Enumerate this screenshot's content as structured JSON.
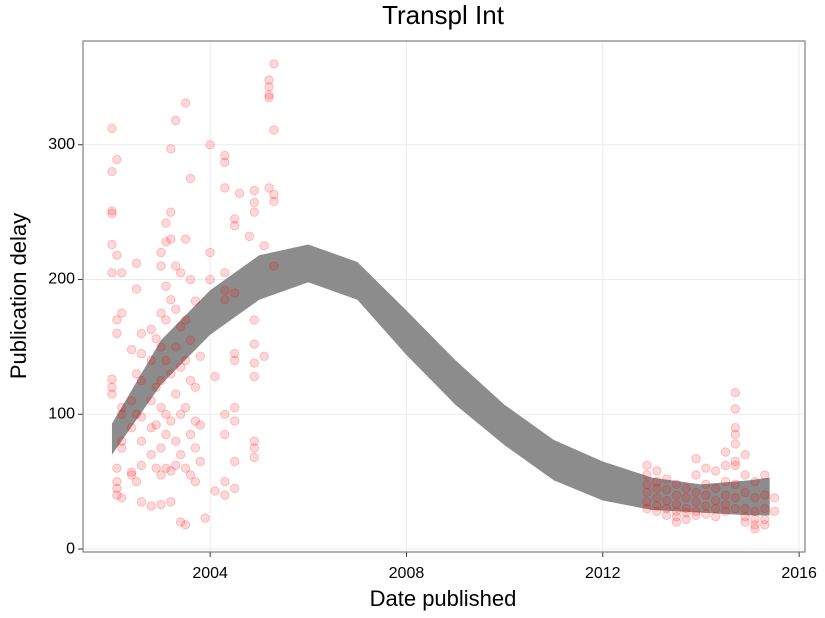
{
  "chart_data": {
    "type": "scatter",
    "title": "Transpl Int",
    "x_label": "Date published",
    "y_label": "Publication delay",
    "xlim": [
      2001.41,
      2016.12
    ],
    "ylim": [
      -2.2,
      377
    ],
    "xticks": [
      2004,
      2008,
      2012,
      2016
    ],
    "yticks": [
      0,
      100,
      200,
      300
    ],
    "grid": true,
    "ribbon": {
      "color": "#8c8c8c",
      "x": [
        2002,
        2003,
        2004,
        2005,
        2006,
        2007,
        2008,
        2009,
        2010,
        2011,
        2012,
        2013,
        2014,
        2015,
        2015.4
      ],
      "lower": [
        70,
        122,
        159,
        185,
        198,
        185,
        144,
        107,
        77,
        51,
        36,
        29,
        27,
        25,
        25
      ],
      "upper": [
        93,
        155,
        192,
        218,
        226,
        213,
        177,
        140,
        107,
        81,
        65,
        53,
        48,
        51,
        53
      ]
    },
    "points": {
      "color": "#ff0000",
      "groups": [
        {
          "x": 2002.0,
          "y": [
            312,
            280,
            251,
            249,
            226,
            205,
            126,
            120,
            115
          ]
        },
        {
          "x": 2002.1,
          "y": [
            289,
            218,
            160,
            170,
            50,
            45,
            40,
            60
          ]
        },
        {
          "x": 2002.2,
          "y": [
            175,
            205,
            100,
            75,
            38,
            80,
            105
          ]
        },
        {
          "x": 2002.4,
          "y": [
            148,
            110,
            90,
            55,
            57
          ]
        },
        {
          "x": 2002.5,
          "y": [
            212,
            193,
            130,
            50,
            100
          ]
        },
        {
          "x": 2002.6,
          "y": [
            160,
            145,
            125,
            98,
            80,
            62,
            35
          ]
        },
        {
          "x": 2002.8,
          "y": [
            163,
            140,
            110,
            90,
            70,
            32
          ]
        },
        {
          "x": 2002.9,
          "y": [
            156,
            120,
            92,
            60
          ]
        },
        {
          "x": 2003.0,
          "y": [
            220,
            210,
            175,
            150,
            125,
            105,
            75,
            55,
            33
          ]
        },
        {
          "x": 2003.1,
          "y": [
            242,
            228,
            195,
            170,
            140,
            100,
            85,
            60
          ]
        },
        {
          "x": 2003.2,
          "y": [
            297,
            250,
            230,
            185,
            130,
            95,
            58,
            35
          ]
        },
        {
          "x": 2003.3,
          "y": [
            318,
            210,
            178,
            150,
            115,
            80,
            62
          ]
        },
        {
          "x": 2003.4,
          "y": [
            205,
            165,
            135,
            100,
            70,
            20
          ]
        },
        {
          "x": 2003.5,
          "y": [
            331,
            230,
            170,
            140,
            105,
            60,
            18
          ]
        },
        {
          "x": 2003.6,
          "y": [
            275,
            200,
            155,
            125,
            85,
            55
          ]
        },
        {
          "x": 2003.7,
          "y": [
            184,
            120,
            95,
            75,
            50
          ]
        },
        {
          "x": 2003.8,
          "y": [
            143,
            92,
            65
          ]
        },
        {
          "x": 2003.9,
          "y": [
            23
          ]
        },
        {
          "x": 2004.0,
          "y": [
            300,
            220,
            200
          ]
        },
        {
          "x": 2004.1,
          "y": [
            128,
            43
          ]
        },
        {
          "x": 2004.3,
          "y": [
            287,
            292,
            268,
            205,
            192,
            185,
            100,
            85,
            50,
            40
          ]
        },
        {
          "x": 2004.5,
          "y": [
            245,
            240,
            190,
            145,
            140,
            105,
            95,
            65,
            45
          ]
        },
        {
          "x": 2004.6,
          "y": [
            264
          ]
        },
        {
          "x": 2004.8,
          "y": [
            232
          ]
        },
        {
          "x": 2004.9,
          "y": [
            266,
            257,
            250,
            170,
            152,
            138,
            128,
            80,
            75,
            68
          ]
        },
        {
          "x": 2005.1,
          "y": [
            225,
            143
          ]
        },
        {
          "x": 2005.2,
          "y": [
            348,
            343,
            337,
            335,
            268
          ]
        },
        {
          "x": 2005.3,
          "y": [
            360,
            311,
            263,
            258,
            210
          ]
        },
        {
          "x": 2012.9,
          "y": [
            62,
            55,
            48,
            42,
            35,
            30
          ]
        },
        {
          "x": 2013.1,
          "y": [
            58,
            50,
            45,
            38,
            32,
            28
          ]
        },
        {
          "x": 2013.3,
          "y": [
            52,
            44,
            36,
            30,
            25
          ]
        },
        {
          "x": 2013.5,
          "y": [
            48,
            40,
            33,
            28,
            24,
            20
          ]
        },
        {
          "x": 2013.7,
          "y": [
            45,
            38,
            30,
            27,
            22
          ]
        },
        {
          "x": 2013.9,
          "y": [
            67,
            55,
            42,
            35,
            28,
            25
          ]
        },
        {
          "x": 2014.1,
          "y": [
            60,
            48,
            40,
            32,
            26
          ]
        },
        {
          "x": 2014.3,
          "y": [
            58,
            45,
            36,
            30,
            24
          ]
        },
        {
          "x": 2014.5,
          "y": [
            72,
            62,
            50,
            40,
            33,
            28
          ]
        },
        {
          "x": 2014.7,
          "y": [
            116,
            104,
            90,
            85,
            78,
            65,
            62,
            48,
            38,
            30
          ]
        },
        {
          "x": 2014.9,
          "y": [
            70,
            55,
            42,
            30,
            24,
            20
          ]
        },
        {
          "x": 2015.1,
          "y": [
            50,
            38,
            28,
            22,
            18,
            15
          ]
        },
        {
          "x": 2015.3,
          "y": [
            55,
            40,
            30,
            22,
            18
          ]
        },
        {
          "x": 2015.5,
          "y": [
            38,
            28
          ]
        }
      ]
    }
  }
}
